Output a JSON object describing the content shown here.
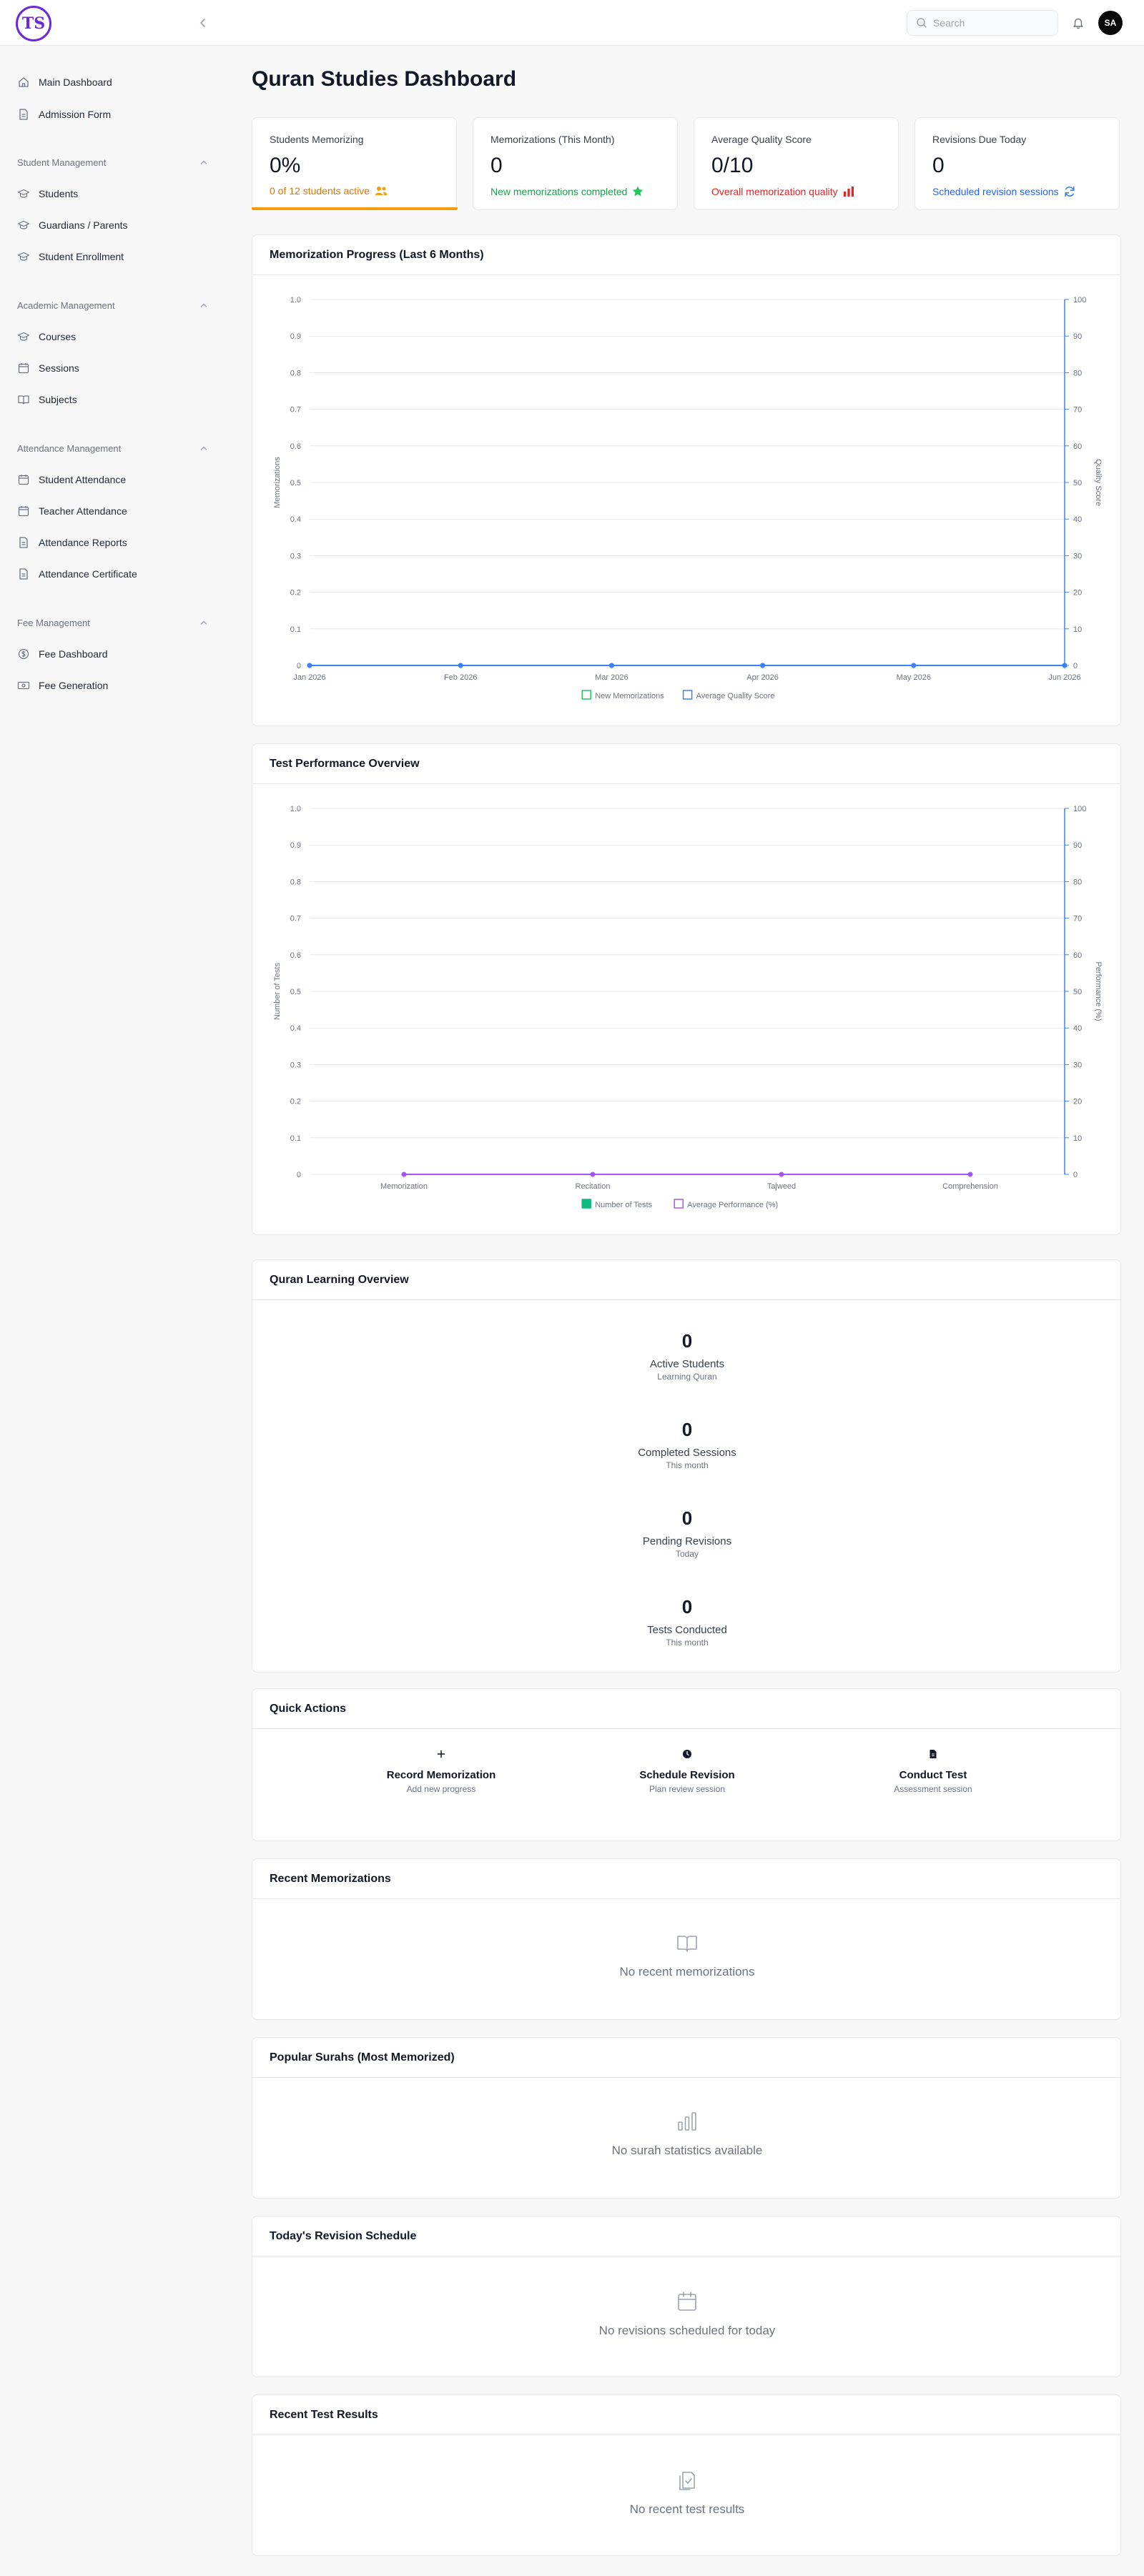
{
  "app": {
    "logo_text": "TS",
    "avatar_initials": "SA"
  },
  "search": {
    "placeholder": "Search"
  },
  "sidebar": {
    "top_items": [
      {
        "label": "Main Dashboard",
        "icon": "home-icon"
      },
      {
        "label": "Admission Form",
        "icon": "document-icon"
      }
    ],
    "sections": [
      {
        "title": "Student Management",
        "items": [
          {
            "label": "Students",
            "icon": "graduation-cap-icon"
          },
          {
            "label": "Guardians / Parents",
            "icon": "graduation-cap-icon"
          },
          {
            "label": "Student Enrollment",
            "icon": "graduation-cap-icon"
          }
        ]
      },
      {
        "title": "Academic Management",
        "items": [
          {
            "label": "Courses",
            "icon": "graduation-cap-icon"
          },
          {
            "label": "Sessions",
            "icon": "calendar-icon"
          },
          {
            "label": "Subjects",
            "icon": "book-icon"
          }
        ]
      },
      {
        "title": "Attendance Management",
        "items": [
          {
            "label": "Student Attendance",
            "icon": "calendar-icon"
          },
          {
            "label": "Teacher Attendance",
            "icon": "calendar-icon"
          },
          {
            "label": "Attendance Reports",
            "icon": "document-icon"
          },
          {
            "label": "Attendance Certificate",
            "icon": "document-icon"
          }
        ]
      },
      {
        "title": "Fee Management",
        "items": [
          {
            "label": "Fee Dashboard",
            "icon": "dollar-icon"
          },
          {
            "label": "Fee Generation",
            "icon": "banknote-icon"
          }
        ]
      }
    ]
  },
  "page": {
    "title": "Quran Studies Dashboard"
  },
  "stats": [
    {
      "label": "Students Memorizing",
      "value": "0%",
      "sub": "0 of 12 students active",
      "sub_color": "#d97706",
      "icon": "users-icon"
    },
    {
      "label": "Memorizations (This Month)",
      "value": "0",
      "sub": "New memorizations completed",
      "sub_color": "#16a34a",
      "icon": "star-icon"
    },
    {
      "label": "Average Quality Score",
      "value": "0/10",
      "sub": "Overall memorization quality",
      "sub_color": "#dc2626",
      "icon": "bar-chart-icon"
    },
    {
      "label": "Revisions Due Today",
      "value": "0",
      "sub": "Scheduled revision sessions",
      "sub_color": "#2563eb",
      "icon": "refresh-icon"
    }
  ],
  "chart_data": [
    {
      "title": "Memorization Progress (Last 6 Months)",
      "type": "line",
      "x": [
        "Jan 2026",
        "Feb 2026",
        "Mar 2026",
        "Apr 2026",
        "May 2026",
        "Jun 2026"
      ],
      "series": [
        {
          "name": "New Memorizations",
          "values": [
            0,
            0,
            0,
            0,
            0,
            0
          ],
          "axis": "left",
          "color": "#22c55e"
        },
        {
          "name": "Average Quality Score",
          "values": [
            0,
            0,
            0,
            0,
            0,
            0
          ],
          "axis": "right",
          "color": "#3b82f6"
        }
      ],
      "ylabel": "Memorizations",
      "y2label": "Quality Score",
      "ylim": [
        0,
        1
      ],
      "y2lim": [
        0,
        100
      ],
      "yticks": [
        "0",
        "0.1",
        "0.2",
        "0.3",
        "0.4",
        "0.5",
        "0.6",
        "0.7",
        "0.8",
        "0.9",
        "1.0"
      ],
      "y2ticks": [
        "0",
        "10",
        "20",
        "30",
        "40",
        "50",
        "60",
        "70",
        "80",
        "90",
        "100"
      ],
      "grid": true,
      "legend": "bottom"
    },
    {
      "title": "Test Performance Overview",
      "type": "bar",
      "categories": [
        "Memorization",
        "Recitation",
        "Tajweed",
        "Comprehension"
      ],
      "series": [
        {
          "name": "Number of Tests",
          "values": [
            0,
            0,
            0,
            0
          ],
          "axis": "left",
          "color": "#10b981",
          "kind": "bar"
        },
        {
          "name": "Average Performance (%)",
          "values": [
            0,
            0,
            0,
            0
          ],
          "axis": "right",
          "color": "#a855f7",
          "kind": "line"
        }
      ],
      "ylabel": "Number of Tests",
      "y2label": "Performance (%)",
      "ylim": [
        0,
        1
      ],
      "y2lim": [
        0,
        100
      ],
      "yticks": [
        "0",
        "0.1",
        "0.2",
        "0.3",
        "0.4",
        "0.5",
        "0.6",
        "0.7",
        "0.8",
        "0.9",
        "1.0"
      ],
      "y2ticks": [
        "0",
        "10",
        "20",
        "30",
        "40",
        "50",
        "60",
        "70",
        "80",
        "90",
        "100"
      ],
      "grid": true,
      "legend": "bottom"
    }
  ],
  "learning_overview": {
    "title": "Quran Learning Overview",
    "items": [
      {
        "value": "0",
        "label": "Active Students",
        "sub": "Learning Quran"
      },
      {
        "value": "0",
        "label": "Completed Sessions",
        "sub": "This month"
      },
      {
        "value": "0",
        "label": "Pending Revisions",
        "sub": "Today"
      },
      {
        "value": "0",
        "label": "Tests Conducted",
        "sub": "This month"
      }
    ]
  },
  "quick_actions": {
    "title": "Quick Actions",
    "items": [
      {
        "label": "Record Memorization",
        "sub": "Add new progress",
        "icon": "plus-icon"
      },
      {
        "label": "Schedule Revision",
        "sub": "Plan review session",
        "icon": "clock-icon"
      },
      {
        "label": "Conduct Test",
        "sub": "Assessment session",
        "icon": "file-icon"
      }
    ]
  },
  "empty_panels": [
    {
      "title": "Recent Memorizations",
      "message": "No recent memorizations",
      "icon": "open-book-icon"
    },
    {
      "title": "Popular Surahs (Most Memorized)",
      "message": "No surah statistics available",
      "icon": "bar-chart-icon"
    },
    {
      "title": "Today's Revision Schedule",
      "message": "No revisions scheduled for today",
      "icon": "calendar-icon"
    },
    {
      "title": "Recent Test Results",
      "message": "No recent test results",
      "icon": "clipboard-check-icon"
    }
  ]
}
